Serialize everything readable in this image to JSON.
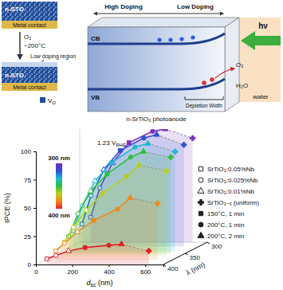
{
  "chart_data": {
    "type": "line",
    "xlabel": [
      "d",
      "sc",
      " (nm)"
    ],
    "ylabel": "IPCE (%)",
    "zlabel": "λ (nm)",
    "annotation": [
      "1.23 V",
      "RHE"
    ],
    "colorbar": {
      "labels": [
        "300 nm",
        "400 nm"
      ]
    },
    "xlim": [
      0,
      700
    ],
    "xticks": [
      0,
      200,
      400,
      600
    ],
    "ylim": [
      0,
      100
    ],
    "yticks": [
      0,
      25,
      50,
      75,
      100
    ],
    "zlim": [
      300,
      400
    ],
    "zticks": [
      300,
      350,
      400
    ],
    "x": [
      60,
      110,
      180,
      270,
      400,
      470,
      620
    ],
    "markers": [
      "square-open",
      "circle-open",
      "triangle-open",
      "square",
      "circle",
      "triangle",
      "cross"
    ],
    "samples": [
      {
        "name": "SrTiO₃:0.05%Nb",
        "marker": "square-open"
      },
      {
        "name": "SrTiO₃:0.025%Nb",
        "marker": "circle-open"
      },
      {
        "name": "SrTiO₃:0.01%Nb",
        "marker": "triangle-open"
      },
      {
        "name": "SrTiO₃₋ₓ (uniform)",
        "marker": "cross"
      },
      {
        "name": "150°C, 1 min",
        "marker": "square"
      },
      {
        "name": "200°C, 1 min",
        "marker": "circle"
      },
      {
        "name": "200°C, 2 min",
        "marker": "triangle"
      }
    ],
    "series": [
      {
        "wavelength": 300,
        "color": "#7b2fbf",
        "values": [
          22,
          48,
          70,
          88,
          98,
          100,
          92
        ]
      },
      {
        "wavelength": 320,
        "color": "#2b4fd8",
        "values": [
          20,
          45,
          68,
          85,
          96,
          99,
          90
        ]
      },
      {
        "wavelength": 340,
        "color": "#1fb8d0",
        "values": [
          18,
          40,
          62,
          78,
          92,
          95,
          88
        ]
      },
      {
        "wavelength": 350,
        "color": "#2fbf3f",
        "values": [
          15,
          35,
          55,
          70,
          85,
          90,
          85
        ]
      },
      {
        "wavelength": 360,
        "color": "#b5d11e",
        "values": [
          12,
          25,
          40,
          55,
          70,
          80,
          75
        ]
      },
      {
        "wavelength": 380,
        "color": "#f08a1c",
        "values": [
          8,
          15,
          25,
          35,
          45,
          55,
          50
        ]
      },
      {
        "wavelength": 400,
        "color": "#e0202a",
        "values": [
          5,
          8,
          12,
          15,
          17,
          18,
          12
        ]
      }
    ]
  },
  "diagram": {
    "top_sample": "n-STO",
    "top_contact": "Metal contact",
    "gas": "O₂",
    "temp": "~200°C",
    "region": "Low doping region",
    "bottom_sample": "n-STO",
    "bottom_contact": "Metal contact",
    "vacancy": [
      "V",
      "O"
    ],
    "high": "High Doping",
    "low": "Low Doping",
    "cb": "CB",
    "vb": "VB",
    "depletion": "Depletion Width",
    "light": "hν",
    "o2": "O₂",
    "h2o": "H₂O",
    "electrode": "n-SrTiO₃ photoanode",
    "electrolyte": "water"
  }
}
